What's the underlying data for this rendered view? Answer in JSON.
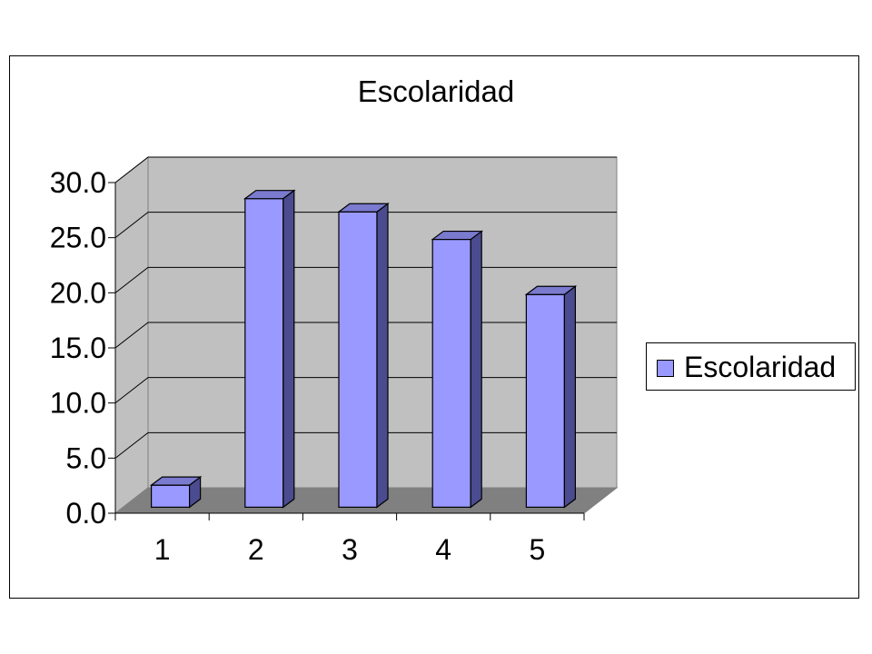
{
  "chart_data": {
    "type": "bar",
    "title": "Escolaridad",
    "categories": [
      "1",
      "2",
      "3",
      "4",
      "5"
    ],
    "series": [
      {
        "name": "Escolaridad",
        "values": [
          2.0,
          28.0,
          26.8,
          24.3,
          19.3
        ]
      }
    ],
    "ylim": [
      0,
      30
    ],
    "yticks": [
      "0.0",
      "5.0",
      "10.0",
      "15.0",
      "20.0",
      "25.0",
      "30.0"
    ],
    "xlabel": "",
    "ylabel": "",
    "grid": true,
    "legend_position": "right",
    "three_d": true
  },
  "colors": {
    "bar_front": "#9999ff",
    "bar_side": "#4b4b90",
    "bar_top": "#7a7acf",
    "back_wall": "#c0c0c0",
    "side_wall": "#c0c0c0",
    "floor": "#808080"
  }
}
